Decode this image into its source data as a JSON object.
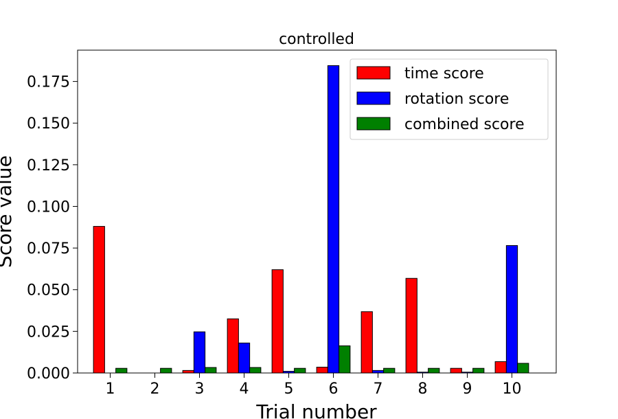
{
  "chart_data": {
    "type": "bar",
    "title": "controlled",
    "xlabel": "Trial number",
    "ylabel": "Score value",
    "categories": [
      "1",
      "2",
      "3",
      "4",
      "5",
      "6",
      "7",
      "8",
      "9",
      "10"
    ],
    "series": [
      {
        "name": "time score",
        "color": "#ff0000",
        "values": [
          0.088,
          0.0,
          0.0015,
          0.0325,
          0.062,
          0.0035,
          0.0368,
          0.0568,
          0.0028,
          0.0068
        ]
      },
      {
        "name": "rotation score",
        "color": "#0000ff",
        "values": [
          0.0,
          0.0,
          0.0247,
          0.018,
          0.001,
          0.1845,
          0.0015,
          0.0005,
          0.0005,
          0.0765
        ]
      },
      {
        "name": "combined score",
        "color": "#008000",
        "values": [
          0.0028,
          0.0028,
          0.0033,
          0.0033,
          0.0028,
          0.0163,
          0.0028,
          0.0028,
          0.0028,
          0.0058
        ]
      }
    ],
    "yticks": [
      "0.000",
      "0.025",
      "0.050",
      "0.075",
      "0.100",
      "0.125",
      "0.150",
      "0.175"
    ],
    "ylim": [
      0,
      0.1938
    ],
    "legend_position": "top-right",
    "grid": false
  }
}
